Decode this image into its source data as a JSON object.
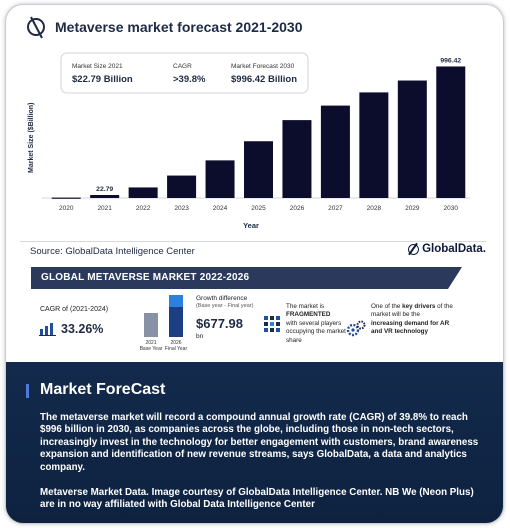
{
  "chart_data": {
    "type": "bar",
    "title": "Metaverse market forecast 2021-2030",
    "xlabel": "Year",
    "ylabel": "Market Size ($Billion)",
    "categories": [
      "2020",
      "2021",
      "2022",
      "2023",
      "2024",
      "2025",
      "2026",
      "2027",
      "2028",
      "2029",
      "2030"
    ],
    "values": [
      3,
      22.79,
      80,
      170,
      285,
      430,
      590,
      700,
      800,
      890,
      996.42
    ],
    "data_labels": {
      "2021": "22.79",
      "2030": "996.42"
    },
    "ylim": [
      0,
      1000
    ],
    "colors": {
      "bar": "#0c0c2c"
    }
  },
  "summary": {
    "market_size_label": "Market Size 2021",
    "market_size_value": "$22.79 Billion",
    "cagr_label": "CAGR",
    "cagr_value": ">39.8%",
    "forecast_label": "Market Forecast 2030",
    "forecast_value": "$996.42 Billion"
  },
  "source": "Source: GlobalData Intelligence Center",
  "logo_text": "GlobalData.",
  "infographic": {
    "banner": "GLOBAL METAVERSE MARKET 2022-2026",
    "cagr_label": "CAGR of (2021-2024)",
    "cagr_value": "33.26%",
    "bar_base_label": "2021\nBase Year",
    "bar_final_label": "2026\nFinal Year",
    "growth_title": "Growth difference",
    "growth_sub": "(Base year - Final year)",
    "growth_value": "$677.98",
    "growth_unit": "bn",
    "frag_pre": "The market is",
    "frag_bold": "FRAGMENTED",
    "frag_post": "with several players occupying the market share",
    "drivers_pre": "One of the",
    "drivers_bold1": "key drivers",
    "drivers_mid": "of the market will be the",
    "drivers_bold2": "increasing demand for AR and VR technology"
  },
  "forecast": {
    "title": "Market ForeCast",
    "body": "The metaverse market will record a compound annual growth rate (CAGR) of 39.8% to reach $996 billion in 2030, as companies across the globe, including those in non-tech sectors, increasingly invest in the technology for better engagement with customers, brand awareness expansion and identification of new revenue streams, says GlobalData, a data and analytics company.",
    "footer": "Metaverse Market Data. Image courtesy of GlobalData Intelligence Center. NB We (Neon Plus) are in no way affiliated with Global Data Intelligence Center"
  },
  "colors": {
    "navy": "#1f2a44",
    "lower_bg": "#132a4c",
    "accent": "#4c7bd8"
  }
}
